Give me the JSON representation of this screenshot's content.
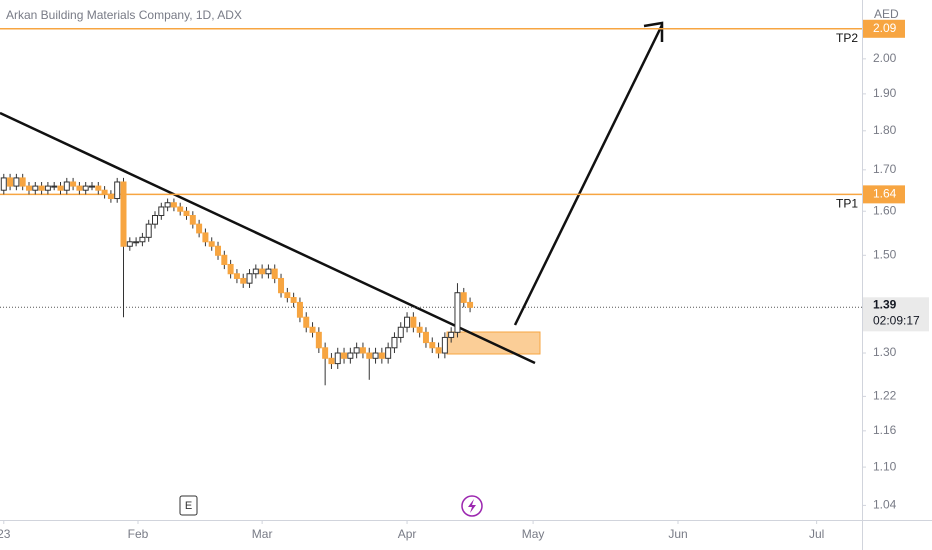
{
  "chart_data": {
    "type": "candlestick",
    "title": "Arkan Building Materials Company, 1D, ADX",
    "currency": "AED",
    "open": [
      1.65,
      1.68,
      1.66,
      1.68,
      1.66,
      1.65,
      1.66,
      1.65,
      1.66,
      1.66,
      1.65,
      1.67,
      1.66,
      1.65,
      1.66,
      1.66,
      1.65,
      1.64,
      1.63,
      1.67,
      1.52,
      1.53,
      1.53,
      1.54,
      1.57,
      1.59,
      1.61,
      1.62,
      1.61,
      1.6,
      1.59,
      1.57,
      1.55,
      1.53,
      1.52,
      1.5,
      1.48,
      1.46,
      1.45,
      1.44,
      1.46,
      1.47,
      1.46,
      1.47,
      1.45,
      1.42,
      1.41,
      1.4,
      1.37,
      1.35,
      1.34,
      1.31,
      1.29,
      1.28,
      1.3,
      1.29,
      1.3,
      1.31,
      1.3,
      1.29,
      1.3,
      1.29,
      1.31,
      1.33,
      1.35,
      1.37,
      1.35,
      1.34,
      1.32,
      1.31,
      1.3,
      1.33,
      1.34,
      1.42,
      1.4
    ],
    "high": [
      1.69,
      1.69,
      1.69,
      1.69,
      1.67,
      1.67,
      1.67,
      1.67,
      1.67,
      1.67,
      1.68,
      1.68,
      1.67,
      1.67,
      1.67,
      1.67,
      1.66,
      1.65,
      1.68,
      1.68,
      1.54,
      1.54,
      1.55,
      1.58,
      1.6,
      1.62,
      1.63,
      1.63,
      1.62,
      1.61,
      1.6,
      1.58,
      1.56,
      1.54,
      1.53,
      1.51,
      1.49,
      1.47,
      1.46,
      1.47,
      1.48,
      1.48,
      1.48,
      1.48,
      1.46,
      1.43,
      1.42,
      1.41,
      1.38,
      1.36,
      1.35,
      1.32,
      1.3,
      1.31,
      1.31,
      1.31,
      1.32,
      1.32,
      1.31,
      1.31,
      1.31,
      1.32,
      1.34,
      1.36,
      1.38,
      1.38,
      1.36,
      1.35,
      1.33,
      1.32,
      1.34,
      1.35,
      1.44,
      1.43,
      1.41
    ],
    "low": [
      1.64,
      1.65,
      1.65,
      1.65,
      1.64,
      1.64,
      1.64,
      1.64,
      1.65,
      1.64,
      1.64,
      1.65,
      1.64,
      1.64,
      1.65,
      1.64,
      1.63,
      1.62,
      1.62,
      1.37,
      1.51,
      1.52,
      1.52,
      1.53,
      1.56,
      1.58,
      1.6,
      1.6,
      1.59,
      1.58,
      1.56,
      1.54,
      1.52,
      1.51,
      1.49,
      1.47,
      1.45,
      1.44,
      1.43,
      1.43,
      1.45,
      1.45,
      1.45,
      1.44,
      1.41,
      1.4,
      1.39,
      1.36,
      1.34,
      1.33,
      1.3,
      1.24,
      1.27,
      1.27,
      1.28,
      1.28,
      1.29,
      1.29,
      1.25,
      1.28,
      1.28,
      1.28,
      1.3,
      1.32,
      1.34,
      1.34,
      1.33,
      1.31,
      1.3,
      1.29,
      1.29,
      1.32,
      1.33,
      1.39,
      1.38
    ],
    "close": [
      1.68,
      1.66,
      1.68,
      1.66,
      1.65,
      1.66,
      1.65,
      1.66,
      1.66,
      1.65,
      1.67,
      1.66,
      1.65,
      1.66,
      1.66,
      1.65,
      1.64,
      1.63,
      1.67,
      1.52,
      1.53,
      1.53,
      1.54,
      1.57,
      1.59,
      1.61,
      1.62,
      1.61,
      1.6,
      1.59,
      1.57,
      1.55,
      1.53,
      1.52,
      1.5,
      1.48,
      1.46,
      1.45,
      1.44,
      1.46,
      1.47,
      1.46,
      1.47,
      1.45,
      1.42,
      1.41,
      1.4,
      1.37,
      1.35,
      1.34,
      1.31,
      1.29,
      1.28,
      1.3,
      1.29,
      1.3,
      1.31,
      1.3,
      1.29,
      1.3,
      1.29,
      1.31,
      1.33,
      1.35,
      1.37,
      1.35,
      1.34,
      1.32,
      1.31,
      1.3,
      1.33,
      1.34,
      1.42,
      1.4,
      1.39
    ],
    "up_color": "#ffffff",
    "down_color": "#f7a541",
    "wick_color": "#333333",
    "level_color": "#f7a541",
    "log_scale": true,
    "ylim": [
      1.018,
      2.18
    ],
    "yticks": [
      {
        "value": 2,
        "label": "2.00"
      },
      {
        "value": 1.9,
        "label": "1.90"
      },
      {
        "value": 1.8,
        "label": "1.80"
      },
      {
        "value": 1.7,
        "label": "1.70"
      },
      {
        "value": 1.6,
        "label": "1.60"
      },
      {
        "value": 1.5,
        "label": "1.50"
      },
      {
        "value": 1.3,
        "label": "1.30"
      },
      1.22,
      1.16,
      {
        "value": 1.1,
        "label": "1.10"
      },
      1.04
    ],
    "xlim": [
      -0.6,
      136.2
    ],
    "xticks": [
      {
        "value": 0,
        "label": "23"
      },
      {
        "value": 21.3,
        "label": "Feb"
      },
      {
        "value": 41,
        "label": "Mar"
      },
      {
        "value": 64,
        "label": "Apr"
      },
      {
        "value": 84,
        "label": "May"
      },
      {
        "value": 107,
        "label": "Jun"
      },
      {
        "value": 129,
        "label": "Jul"
      }
    ],
    "levels": [
      {
        "name": "TP2",
        "value": 2.09
      },
      {
        "name": "TP1",
        "value": 1.64
      }
    ],
    "countdown": "02:09:17",
    "event_marker": "E"
  }
}
